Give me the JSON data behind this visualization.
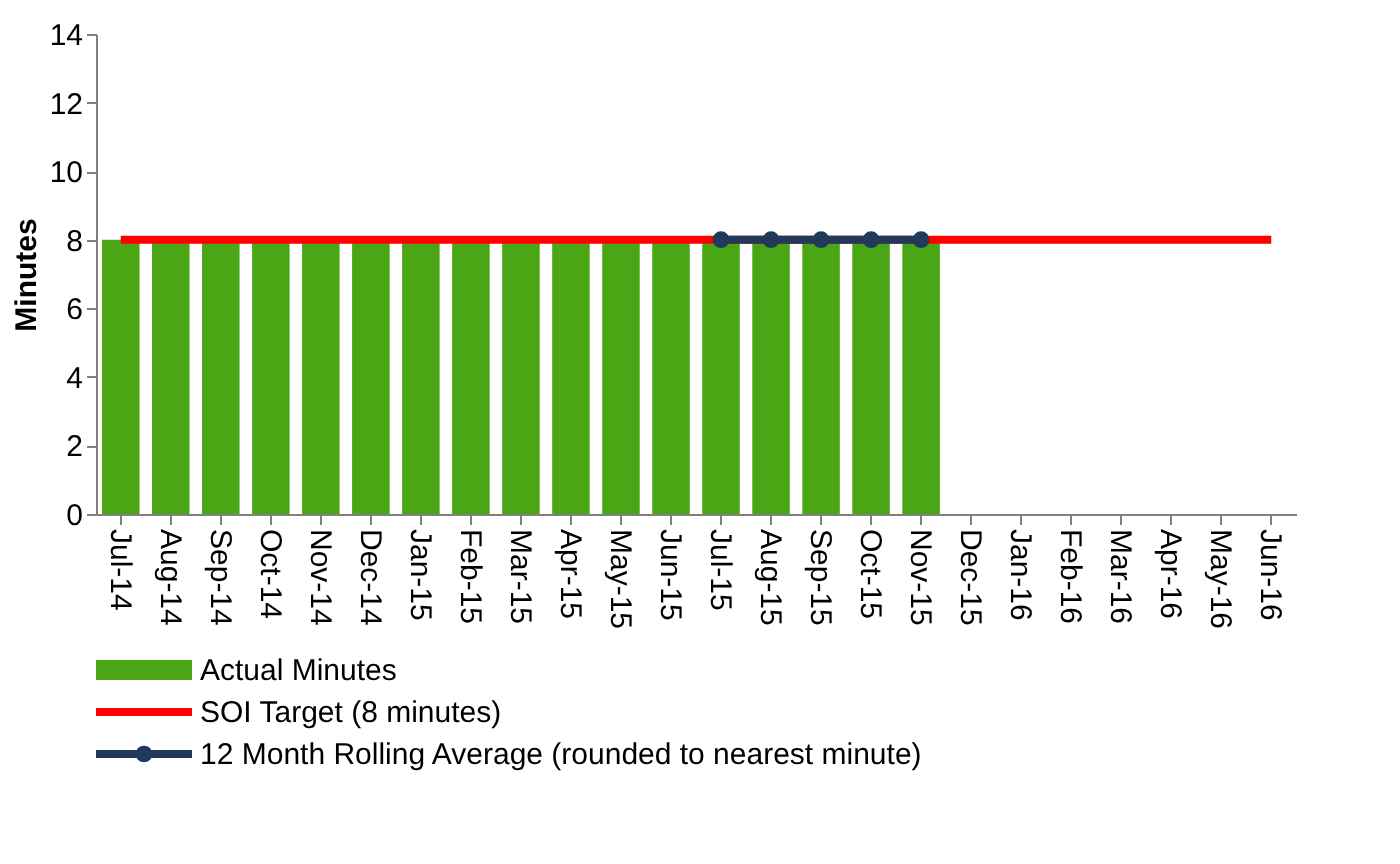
{
  "chart_data": {
    "type": "bar",
    "ylabel": "Minutes",
    "categories": [
      "Jul-14",
      "Aug-14",
      "Sep-14",
      "Oct-14",
      "Nov-14",
      "Dec-14",
      "Jan-15",
      "Feb-15",
      "Mar-15",
      "Apr-15",
      "May-15",
      "Jun-15",
      "Jul-15",
      "Aug-15",
      "Sep-15",
      "Oct-15",
      "Nov-15",
      "Dec-15",
      "Jan-16",
      "Feb-16",
      "Mar-16",
      "Apr-16",
      "May-16",
      "Jun-16"
    ],
    "series": [
      {
        "name": "Actual Minutes",
        "color": "#4aa615",
        "values": [
          8,
          8,
          8,
          8,
          8,
          8,
          8,
          8,
          8,
          8,
          8,
          8,
          8,
          8,
          8,
          8,
          8,
          null,
          null,
          null,
          null,
          null,
          null,
          null
        ]
      },
      {
        "name": "SOI Target (8 minutes)",
        "type": "line",
        "color": "#ff0000",
        "marker": "none",
        "values": [
          8,
          8,
          8,
          8,
          8,
          8,
          8,
          8,
          8,
          8,
          8,
          8,
          8,
          8,
          8,
          8,
          8,
          8,
          8,
          8,
          8,
          8,
          8,
          8
        ]
      },
      {
        "name": "12 Month Rolling Average (rounded to nearest minute)",
        "type": "line",
        "color": "#1f3a5a",
        "marker": "circle",
        "values": [
          null,
          null,
          null,
          null,
          null,
          null,
          null,
          null,
          null,
          null,
          null,
          null,
          8,
          8,
          8,
          8,
          8,
          null,
          null,
          null,
          null,
          null,
          null,
          null
        ]
      }
    ],
    "ylim": [
      0,
      14
    ],
    "yticks": [
      0,
      2,
      4,
      6,
      8,
      10,
      12,
      14
    ],
    "grid": false,
    "legend": "bottom"
  }
}
